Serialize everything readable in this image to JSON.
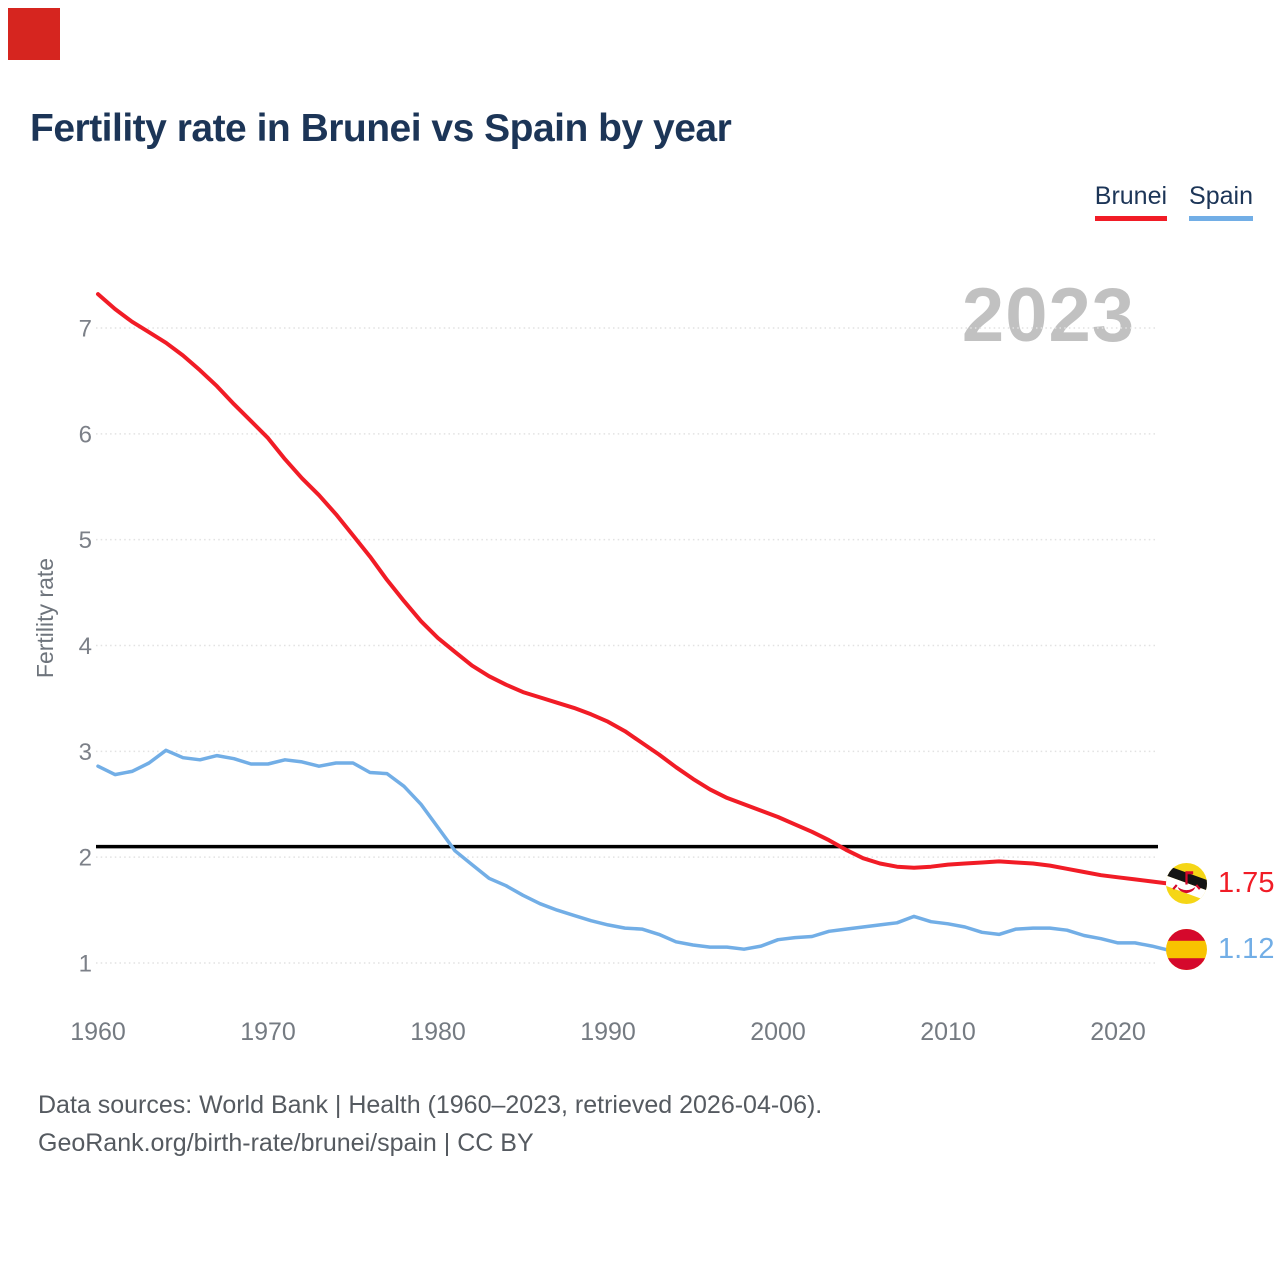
{
  "corner_marker": {
    "color": "#d6251f"
  },
  "header": {
    "title": "Fertility rate in Brunei vs Spain by year"
  },
  "watermark": "2023",
  "chart_data": {
    "type": "line",
    "title": "Fertility rate in Brunei vs Spain by year",
    "xlabel": "",
    "ylabel": "Fertility rate",
    "grid": "horizontal-dotted",
    "legend_position": "top-right",
    "xlim": [
      1960,
      2023
    ],
    "ylim": [
      0.7,
      7.5
    ],
    "x_ticks": [
      1960,
      1970,
      1980,
      1990,
      2000,
      2010,
      2020
    ],
    "y_ticks": [
      1,
      2,
      3,
      4,
      5,
      6,
      7
    ],
    "reference_line": {
      "value": 2.1,
      "color": "#000000"
    },
    "years": [
      1960,
      1961,
      1962,
      1963,
      1964,
      1965,
      1966,
      1967,
      1968,
      1969,
      1970,
      1971,
      1972,
      1973,
      1974,
      1975,
      1976,
      1977,
      1978,
      1979,
      1980,
      1981,
      1982,
      1983,
      1984,
      1985,
      1986,
      1987,
      1988,
      1989,
      1990,
      1991,
      1992,
      1993,
      1994,
      1995,
      1996,
      1997,
      1998,
      1999,
      2000,
      2001,
      2002,
      2003,
      2004,
      2005,
      2006,
      2007,
      2008,
      2009,
      2010,
      2011,
      2012,
      2013,
      2014,
      2015,
      2016,
      2017,
      2018,
      2019,
      2020,
      2021,
      2022,
      2023
    ],
    "series": [
      {
        "name": "Brunei",
        "color": "#f11c26",
        "end_label": "1.75",
        "flag": "brunei",
        "values": [
          7.32,
          7.18,
          7.06,
          6.96,
          6.86,
          6.74,
          6.6,
          6.45,
          6.28,
          6.12,
          5.96,
          5.76,
          5.58,
          5.42,
          5.24,
          5.04,
          4.84,
          4.62,
          4.42,
          4.23,
          4.07,
          3.94,
          3.81,
          3.71,
          3.63,
          3.56,
          3.51,
          3.46,
          3.41,
          3.35,
          3.28,
          3.19,
          3.08,
          2.97,
          2.85,
          2.74,
          2.64,
          2.56,
          2.5,
          2.44,
          2.38,
          2.31,
          2.24,
          2.16,
          2.07,
          1.99,
          1.94,
          1.91,
          1.9,
          1.91,
          1.93,
          1.94,
          1.95,
          1.96,
          1.95,
          1.94,
          1.92,
          1.89,
          1.86,
          1.83,
          1.81,
          1.79,
          1.77,
          1.75
        ]
      },
      {
        "name": "Spain",
        "color": "#72aee6",
        "end_label": "1.12",
        "flag": "spain",
        "values": [
          2.86,
          2.78,
          2.81,
          2.89,
          3.01,
          2.94,
          2.92,
          2.96,
          2.93,
          2.88,
          2.88,
          2.92,
          2.9,
          2.86,
          2.89,
          2.89,
          2.8,
          2.79,
          2.67,
          2.5,
          2.28,
          2.06,
          1.93,
          1.8,
          1.73,
          1.64,
          1.56,
          1.5,
          1.45,
          1.4,
          1.36,
          1.33,
          1.32,
          1.27,
          1.2,
          1.17,
          1.15,
          1.15,
          1.13,
          1.16,
          1.22,
          1.24,
          1.25,
          1.3,
          1.32,
          1.34,
          1.36,
          1.38,
          1.44,
          1.39,
          1.37,
          1.34,
          1.29,
          1.27,
          1.32,
          1.33,
          1.33,
          1.31,
          1.26,
          1.23,
          1.19,
          1.19,
          1.16,
          1.12
        ]
      }
    ]
  },
  "footer": {
    "line1": "Data sources: World Bank | Health (1960–2023, retrieved 2026-04-06).",
    "line2": "GeoRank.org/birth-rate/brunei/spain | CC BY"
  }
}
